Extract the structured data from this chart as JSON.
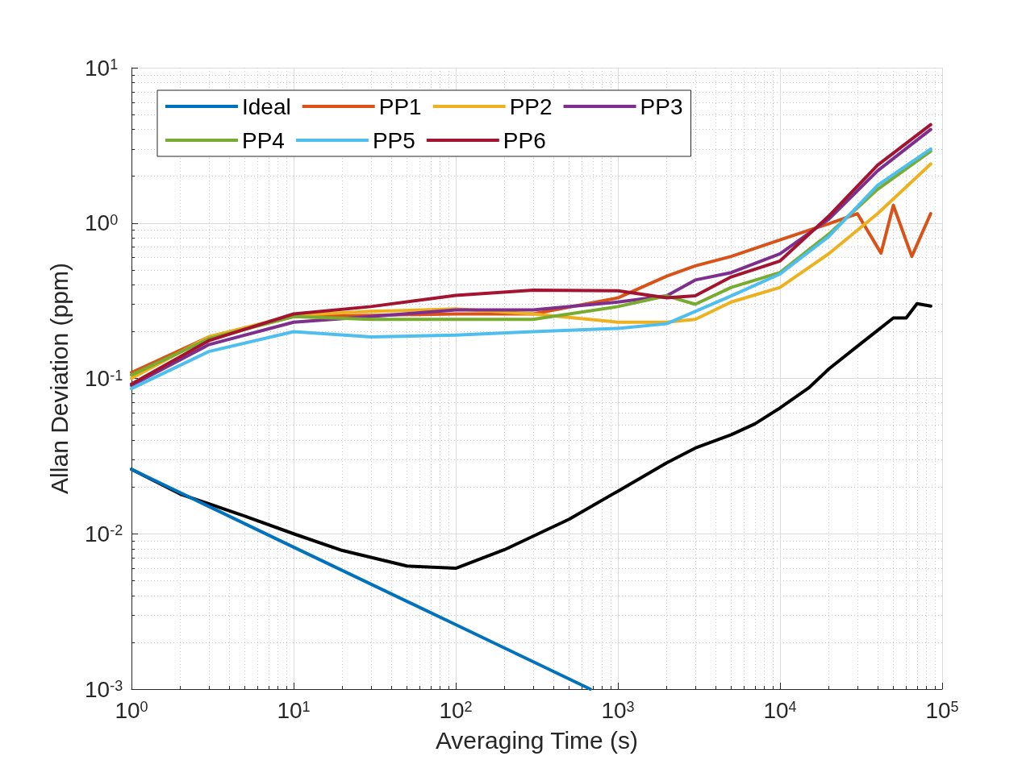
{
  "chart_data": {
    "type": "line",
    "xlabel": "Averaging Time (s)",
    "ylabel": "Allan Deviation (ppm)",
    "log": "xy",
    "grid": true,
    "legend": "top left",
    "marker": "none",
    "line_style": "solid",
    "xlim": [
      1,
      100000
    ],
    "xticks": [
      {
        "value": 1,
        "label": "10$^{0}$"
      },
      {
        "value": 10,
        "label": "10$^{1}$"
      },
      {
        "value": 100,
        "label": "10$^{2}$"
      },
      {
        "value": 1000,
        "label": "10$^{3}$"
      },
      {
        "value": 10000,
        "label": "10$^{4}$"
      },
      {
        "value": 100000,
        "label": "10$^{5}$"
      }
    ],
    "ylim": [
      0.001,
      10
    ],
    "yticks": [
      {
        "value": 0.001,
        "label": "10$^{-3}$"
      },
      {
        "value": 0.01,
        "label": "10$^{-2}$"
      },
      {
        "value": 0.1,
        "label": "10$^{-1}$"
      },
      {
        "value": 1,
        "label": "10$^{0}$"
      },
      {
        "value": 10,
        "label": "10$^{1}$"
      }
    ],
    "series": [
      {
        "color": "#000000",
        "x": [
          1,
          2,
          5,
          10,
          20,
          50,
          100,
          200,
          500,
          1000,
          2000,
          3000,
          5000,
          7000,
          10000,
          15000,
          20000,
          30000,
          40000,
          50000,
          60000,
          70000,
          85000
        ],
        "values": [
          0.026,
          0.018,
          0.013,
          0.01,
          0.0078,
          0.0062,
          0.006,
          0.0079,
          0.0124,
          0.0188,
          0.0286,
          0.0356,
          0.0434,
          0.051,
          0.0645,
          0.0867,
          0.115,
          0.161,
          0.204,
          0.245,
          0.245,
          0.303,
          0.292
        ]
      },
      {
        "name": "Ideal",
        "color": "#0072bd",
        "x": [
          1,
          10,
          100,
          676
        ],
        "values": [
          0.026,
          0.0082,
          0.0026,
          0.001
        ]
      },
      {
        "name": "PP1",
        "color": "#d95319",
        "x": [
          1,
          3,
          10,
          30,
          100,
          300,
          1000,
          2000,
          3000,
          5000,
          10000,
          20000,
          30000,
          42000,
          50000,
          65000,
          85000
        ],
        "values": [
          0.109,
          0.185,
          0.25,
          0.255,
          0.26,
          0.26,
          0.33,
          0.455,
          0.53,
          0.61,
          0.78,
          0.99,
          1.15,
          0.64,
          1.3,
          0.61,
          1.15
        ]
      },
      {
        "name": "PP2",
        "color": "#edb120",
        "x": [
          1,
          3,
          10,
          30,
          100,
          300,
          1000,
          2000,
          3000,
          5000,
          10000,
          20000,
          40000,
          85000
        ],
        "values": [
          0.1,
          0.185,
          0.255,
          0.27,
          0.28,
          0.26,
          0.23,
          0.23,
          0.24,
          0.31,
          0.385,
          0.635,
          1.15,
          2.4
        ]
      },
      {
        "name": "PP3",
        "color": "#7e2f8e",
        "x": [
          1,
          3,
          10,
          30,
          100,
          300,
          1000,
          2000,
          3000,
          5000,
          10000,
          20000,
          40000,
          85000
        ],
        "values": [
          0.09,
          0.165,
          0.23,
          0.25,
          0.276,
          0.276,
          0.31,
          0.34,
          0.43,
          0.48,
          0.635,
          1.06,
          2.17,
          4.0
        ]
      },
      {
        "name": "PP4",
        "color": "#77ac30",
        "x": [
          1,
          3,
          10,
          30,
          100,
          300,
          1000,
          2000,
          3000,
          5000,
          10000,
          20000,
          40000,
          85000
        ],
        "values": [
          0.105,
          0.18,
          0.25,
          0.24,
          0.24,
          0.24,
          0.29,
          0.34,
          0.3,
          0.385,
          0.48,
          0.85,
          1.65,
          2.9
        ]
      },
      {
        "name": "PP5",
        "color": "#4dbeee",
        "x": [
          1,
          3,
          10,
          30,
          100,
          300,
          1000,
          2000,
          3000,
          5000,
          10000,
          20000,
          40000,
          85000
        ],
        "values": [
          0.086,
          0.149,
          0.2,
          0.185,
          0.19,
          0.2,
          0.21,
          0.225,
          0.27,
          0.34,
          0.47,
          0.82,
          1.75,
          3.0
        ]
      },
      {
        "name": "PP6",
        "color": "#a2142f",
        "x": [
          1,
          3,
          10,
          30,
          100,
          300,
          1000,
          2000,
          3000,
          5000,
          10000,
          20000,
          40000,
          85000
        ],
        "values": [
          0.092,
          0.175,
          0.26,
          0.29,
          0.342,
          0.37,
          0.367,
          0.33,
          0.34,
          0.45,
          0.57,
          1.11,
          2.36,
          4.3
        ]
      }
    ]
  }
}
